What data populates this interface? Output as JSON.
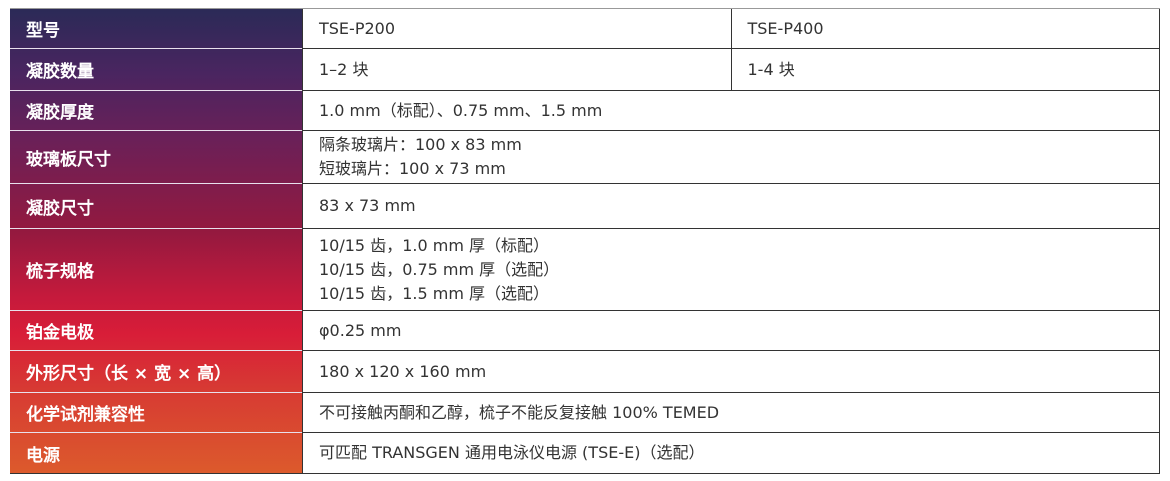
{
  "rows": [
    {
      "label": "型号",
      "values": [
        "TSE-P200",
        "TSE-P400"
      ]
    },
    {
      "label": "凝胶数量",
      "values": [
        "1–2 块",
        "1-4 块"
      ]
    },
    {
      "label": "凝胶厚度",
      "values": [
        "1.0 mm（标配）、0.75 mm、1.5 mm"
      ]
    },
    {
      "label": "玻璃板尺寸",
      "lines": [
        "隔条玻璃片：100 x 83 mm",
        "短玻璃片：100 x 73 mm"
      ]
    },
    {
      "label": "凝胶尺寸",
      "values": [
        "83 x 73 mm"
      ]
    },
    {
      "label": "梳子规格",
      "lines": [
        "10/15 齿，1.0 mm 厚（标配）",
        "10/15 齿，0.75 mm 厚（选配）",
        "10/15 齿，1.5 mm 厚（选配）"
      ]
    },
    {
      "label": "铂金电极",
      "values": [
        "φ0.25 mm"
      ]
    },
    {
      "label": "外形尺寸（长 × 宽 × 高）",
      "values": [
        "180  x 120  x 160 mm"
      ]
    },
    {
      "label": "化学试剂兼容性",
      "values": [
        "不可接触丙酮和乙醇，梳子不能反复接触 100% TEMED"
      ]
    },
    {
      "label": "电源",
      "values": [
        "可匹配 TRANSGEN 通用电泳仪电源 (TSE-E)（选配）"
      ]
    }
  ],
  "colors": {
    "header_top": "#2b2a57",
    "header_mid": "#d81d38",
    "header_bottom": "#dc5a2c"
  }
}
